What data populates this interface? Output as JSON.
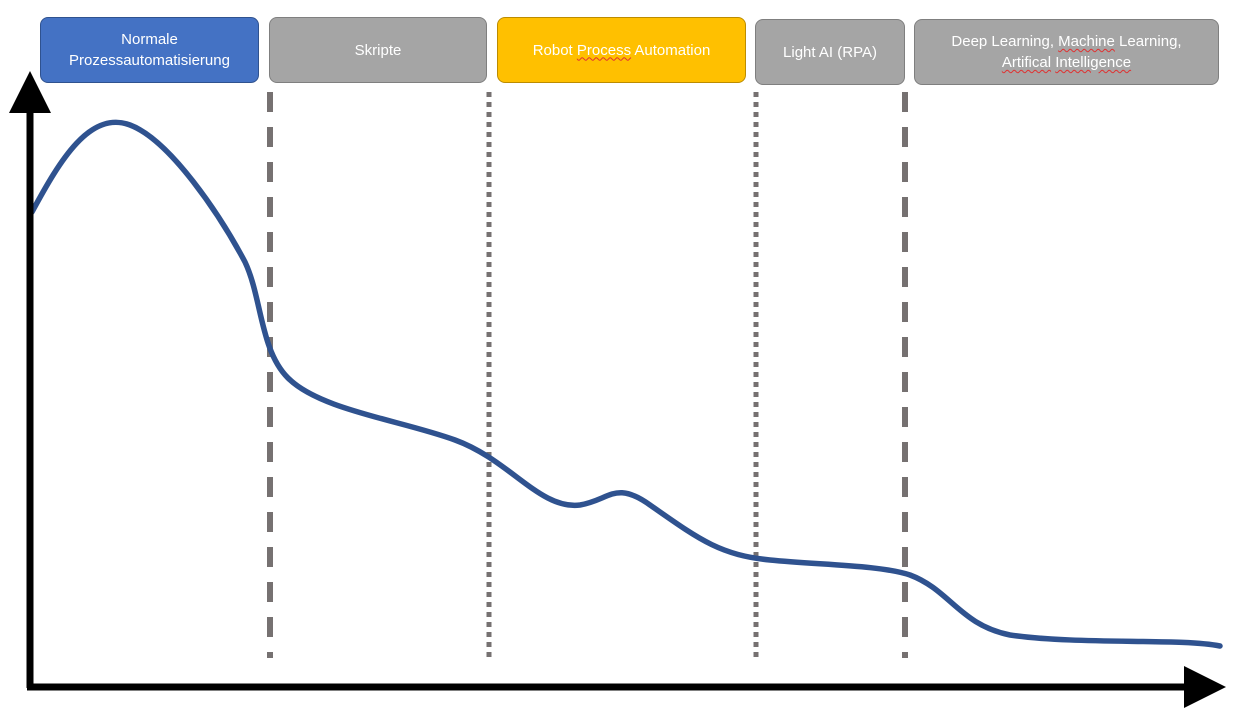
{
  "stages": [
    {
      "id": "normal",
      "label": "Normale Prozessautomatisierung"
    },
    {
      "id": "scripts",
      "label": "Skripte"
    },
    {
      "id": "rpa",
      "label_parts": [
        "Robot ",
        "Process",
        " Automation"
      ]
    },
    {
      "id": "light-ai",
      "label": "Light AI (RPA)"
    },
    {
      "id": "deep-learning",
      "line1_parts": [
        "Deep Learning, ",
        "Machine",
        " Learning,"
      ],
      "line2_parts": [
        "Artifical",
        " ",
        "Intelligence"
      ]
    }
  ],
  "colors": {
    "curve": "#2f528f",
    "axis": "#000000",
    "divider": "#767171",
    "stage_gray": "#a5a5a5",
    "stage_blue": "#4472c4",
    "stage_yellow": "#ffc000",
    "label_text": "#ffffff"
  },
  "dividers": [
    {
      "name": "divider-1",
      "style": "dashed"
    },
    {
      "name": "divider-2",
      "style": "dotted"
    },
    {
      "name": "divider-3",
      "style": "dotted"
    },
    {
      "name": "divider-4",
      "style": "dashed"
    }
  ]
}
